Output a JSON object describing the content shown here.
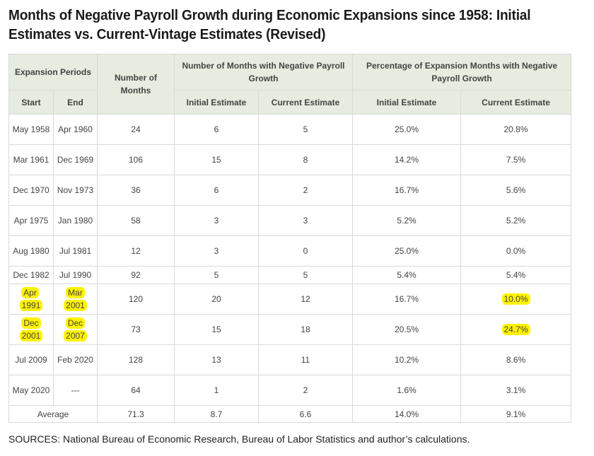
{
  "title": {
    "line1": "Months of Negative Payroll Growth during Economic Expansions since 1958: Initial",
    "line2": "Estimates vs. Current-Vintage Estimates (Revised)"
  },
  "table": {
    "headers": {
      "expansion_periods": "Expansion Periods",
      "number_of_months": "Number of Months",
      "neg_months_group": "Number of Months with Negative Payroll Growth",
      "pct_group": "Percentage of Expansion Months with Negative Payroll Growth",
      "start": "Start",
      "end": "End",
      "initial_estimate": "Initial Estimate",
      "current_estimate": "Current Estimate",
      "pct_initial_estimate": "Initial Estimate",
      "pct_current_estimate": "Current Estimate"
    },
    "rows": [
      {
        "start": "May 1958",
        "end": "Apr 1960",
        "months": "24",
        "neg_initial": "6",
        "neg_current": "5",
        "pct_initial": "25.0%",
        "pct_current": "20.8%"
      },
      {
        "start": "Mar 1961",
        "end": "Dec 1969",
        "months": "106",
        "neg_initial": "15",
        "neg_current": "8",
        "pct_initial": "14.2%",
        "pct_current": "7.5%"
      },
      {
        "start": "Dec 1970",
        "end": "Nov 1973",
        "months": "36",
        "neg_initial": "6",
        "neg_current": "2",
        "pct_initial": "16.7%",
        "pct_current": "5.6%"
      },
      {
        "start": "Apr 1975",
        "end": "Jan 1980",
        "months": "58",
        "neg_initial": "3",
        "neg_current": "3",
        "pct_initial": "5.2%",
        "pct_current": "5.2%"
      },
      {
        "start": "Aug 1980",
        "end": "Jul 1981",
        "months": "12",
        "neg_initial": "3",
        "neg_current": "0",
        "pct_initial": "25.0%",
        "pct_current": "0.0%"
      },
      {
        "start": "Dec 1982",
        "end": "Jul 1990",
        "months": "92",
        "neg_initial": "5",
        "neg_current": "5",
        "pct_initial": "5.4%",
        "pct_current": "5.4%"
      },
      {
        "start": "Apr 1991",
        "end": "Mar 2001",
        "months": "120",
        "neg_initial": "20",
        "neg_current": "12",
        "pct_initial": "16.7%",
        "pct_current": "10.0%"
      },
      {
        "start": "Dec 2001",
        "end": "Dec 2007",
        "months": "73",
        "neg_initial": "15",
        "neg_current": "18",
        "pct_initial": "20.5%",
        "pct_current": "24.7%"
      },
      {
        "start": "Jul 2009",
        "end": "Feb 2020",
        "months": "128",
        "neg_initial": "13",
        "neg_current": "11",
        "pct_initial": "10.2%",
        "pct_current": "8.6%"
      },
      {
        "start": "May 2020",
        "end": "---",
        "months": "64",
        "neg_initial": "1",
        "neg_current": "2",
        "pct_initial": "1.6%",
        "pct_current": "3.1%"
      }
    ],
    "average": {
      "label": "Average",
      "months": "71.3",
      "neg_initial": "8.7",
      "neg_current": "6.6",
      "pct_initial": "14.0%",
      "pct_current": "9.1%"
    }
  },
  "highlight_color": "#fff200",
  "header_bg_color": "#e6ecdf",
  "source": "SOURCES: National Bureau of Economic Research, Bureau of Labor Statistics and author’s calculations."
}
